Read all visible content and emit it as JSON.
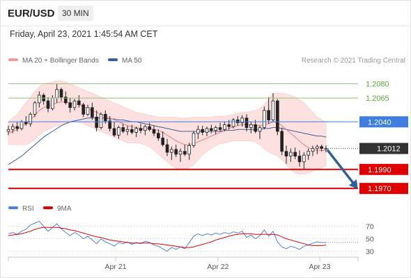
{
  "header": {
    "pair": "EUR/USD",
    "interval": "30 MIN",
    "datetime": "Friday, April 23, 2021 1:45:54 AM CET"
  },
  "credit": "Research © 2021 Trading Central",
  "legend": {
    "ma20": "MA 20 + Bollinger Bands",
    "ma50": "MA 50",
    "rsi": "RSI",
    "ma9": "9MA"
  },
  "colors": {
    "candle_up": "#ffffff",
    "candle_down": "#222222",
    "bollinger_fill": "#fde0e0",
    "ma20": "#ef7b7b",
    "ma50": "#3b5e9e",
    "resistance": "#8fc77a",
    "pivot": "#3f7de0",
    "support": "#e00000",
    "last_price": "#333333",
    "arrow": "#2d5f99",
    "rsi": "#4f7fe0",
    "rsi_ma": "#e00000"
  },
  "chart_data": [
    {
      "type": "candlestick",
      "title": "EUR/USD",
      "interval": "30 MIN",
      "x_ticks": [
        "Apr 21",
        "Apr 22",
        "Apr 23"
      ],
      "ylim": [
        1.1965,
        1.2095
      ],
      "grid": false,
      "levels": [
        {
          "label": "1.2080",
          "value": 1.208,
          "kind": "resistance"
        },
        {
          "label": "1.2065",
          "value": 1.2065,
          "kind": "resistance"
        },
        {
          "label": "1.2040",
          "value": 1.204,
          "kind": "pivot"
        },
        {
          "label": "1.2012",
          "value": 1.2012,
          "kind": "last"
        },
        {
          "label": "1.1990",
          "value": 1.199,
          "kind": "support"
        },
        {
          "label": "1.1970",
          "value": 1.197,
          "kind": "support"
        }
      ],
      "candles": [
        [
          1.203,
          1.2036,
          1.2026,
          1.2032
        ],
        [
          1.2032,
          1.2038,
          1.2028,
          1.2035
        ],
        [
          1.2035,
          1.204,
          1.203,
          1.2033
        ],
        [
          1.2033,
          1.2042,
          1.2031,
          1.204
        ],
        [
          1.204,
          1.2046,
          1.2036,
          1.2038
        ],
        [
          1.2038,
          1.205,
          1.2035,
          1.2048
        ],
        [
          1.2048,
          1.2062,
          1.2045,
          1.206
        ],
        [
          1.206,
          1.2072,
          1.2055,
          1.2068
        ],
        [
          1.2068,
          1.207,
          1.2058,
          1.2062
        ],
        [
          1.2062,
          1.2066,
          1.205,
          1.2054
        ],
        [
          1.2054,
          1.2068,
          1.2052,
          1.2065
        ],
        [
          1.2065,
          1.208,
          1.206,
          1.2074
        ],
        [
          1.2074,
          1.2076,
          1.2062,
          1.2066
        ],
        [
          1.2066,
          1.2072,
          1.2058,
          1.206
        ],
        [
          1.206,
          1.2065,
          1.205,
          1.2055
        ],
        [
          1.2055,
          1.2064,
          1.2052,
          1.2062
        ],
        [
          1.2062,
          1.2068,
          1.2055,
          1.2058
        ],
        [
          1.2058,
          1.206,
          1.2045,
          1.2048
        ],
        [
          1.2048,
          1.2058,
          1.2046,
          1.2055
        ],
        [
          1.2055,
          1.206,
          1.2042,
          1.2045
        ],
        [
          1.2045,
          1.2052,
          1.203,
          1.2034
        ],
        [
          1.2034,
          1.205,
          1.2032,
          1.2048
        ],
        [
          1.2048,
          1.2052,
          1.2038,
          1.2041
        ],
        [
          1.2041,
          1.2046,
          1.203,
          1.2033
        ],
        [
          1.2033,
          1.204,
          1.2024,
          1.2026
        ],
        [
          1.2026,
          1.2036,
          1.2022,
          1.2034
        ],
        [
          1.2034,
          1.2038,
          1.2028,
          1.203
        ],
        [
          1.203,
          1.2036,
          1.2026,
          1.2032
        ],
        [
          1.2032,
          1.2037,
          1.2027,
          1.2029
        ],
        [
          1.2029,
          1.2035,
          1.2024,
          1.2033
        ],
        [
          1.2033,
          1.2038,
          1.2028,
          1.2031
        ],
        [
          1.2031,
          1.2037,
          1.2026,
          1.2035
        ],
        [
          1.2035,
          1.2039,
          1.203,
          1.2032
        ],
        [
          1.2032,
          1.2036,
          1.2025,
          1.2028
        ],
        [
          1.2028,
          1.2032,
          1.202,
          1.2023
        ],
        [
          1.2023,
          1.203,
          1.2014,
          1.2016
        ],
        [
          1.2016,
          1.2022,
          1.2004,
          1.2008
        ],
        [
          1.2008,
          1.2014,
          1.2,
          1.2011
        ],
        [
          1.2011,
          1.2016,
          1.2003,
          1.2006
        ],
        [
          1.2006,
          1.2012,
          1.1998,
          1.2009
        ],
        [
          1.2009,
          1.2016,
          1.2004,
          1.2006
        ],
        [
          1.2006,
          1.2018,
          1.2,
          1.2015
        ],
        [
          1.2015,
          1.203,
          1.2013,
          1.2028
        ],
        [
          1.2028,
          1.2036,
          1.2022,
          1.2032
        ],
        [
          1.2032,
          1.2036,
          1.2026,
          1.2029
        ],
        [
          1.2029,
          1.2035,
          1.2025,
          1.2033
        ],
        [
          1.2033,
          1.2037,
          1.2028,
          1.2031
        ],
        [
          1.2031,
          1.2036,
          1.2027,
          1.2034
        ],
        [
          1.2034,
          1.2039,
          1.203,
          1.2032
        ],
        [
          1.2032,
          1.204,
          1.203,
          1.2037
        ],
        [
          1.2037,
          1.2042,
          1.2032,
          1.2035
        ],
        [
          1.2035,
          1.2044,
          1.2033,
          1.2042
        ],
        [
          1.2042,
          1.2046,
          1.2036,
          1.2039
        ],
        [
          1.2039,
          1.2047,
          1.2035,
          1.2044
        ],
        [
          1.2044,
          1.2048,
          1.203,
          1.2034
        ],
        [
          1.2034,
          1.204,
          1.2028,
          1.2037
        ],
        [
          1.2037,
          1.2042,
          1.2028,
          1.203
        ],
        [
          1.203,
          1.2036,
          1.2022,
          1.2034
        ],
        [
          1.2034,
          1.2056,
          1.2032,
          1.2052
        ],
        [
          1.2052,
          1.2066,
          1.2038,
          1.2042
        ],
        [
          1.2042,
          1.207,
          1.204,
          1.2062
        ],
        [
          1.2062,
          1.2064,
          1.2026,
          1.203
        ],
        [
          1.203,
          1.2034,
          1.2005,
          1.2009
        ],
        [
          1.2009,
          1.2015,
          1.1996,
          1.2004
        ],
        [
          1.2004,
          1.2012,
          1.1998,
          1.2008
        ],
        [
          1.2008,
          1.2013,
          1.2001,
          1.2004
        ],
        [
          1.2004,
          1.201,
          1.1993,
          1.1998
        ],
        [
          1.1998,
          1.2008,
          1.199,
          1.2005
        ],
        [
          1.2005,
          1.2012,
          1.2,
          1.2009
        ],
        [
          1.2009,
          1.2015,
          1.2004,
          1.2012
        ],
        [
          1.2012,
          1.2016,
          1.2006,
          1.2014
        ],
        [
          1.2014,
          1.2016,
          1.2009,
          1.2012
        ],
        [
          1.2012,
          1.2015,
          1.2008,
          1.2012
        ]
      ],
      "ma20": [
        1.2028,
        1.203,
        1.2032,
        1.2035,
        1.2038,
        1.2042,
        1.2047,
        1.2052,
        1.2055,
        1.2057,
        1.2058,
        1.206,
        1.2061,
        1.2061,
        1.206,
        1.2059,
        1.2058,
        1.2056,
        1.2054,
        1.2052,
        1.205,
        1.2048,
        1.2046,
        1.2044,
        1.2042,
        1.204,
        1.2038,
        1.2036,
        1.2035,
        1.2034,
        1.2033,
        1.2033,
        1.2033,
        1.2032,
        1.2031,
        1.2029,
        1.2026,
        1.2023,
        1.202,
        1.2018,
        1.2016,
        1.2016,
        1.2017,
        1.2019,
        1.2021,
        1.2023,
        1.2025,
        1.2027,
        1.2029,
        1.2031,
        1.2033,
        1.2035,
        1.2036,
        1.2037,
        1.2037,
        1.2037,
        1.2036,
        1.2036,
        1.2037,
        1.2038,
        1.204,
        1.2039,
        1.2036,
        1.2032,
        1.2028,
        1.2024,
        1.202,
        1.2016,
        1.2013,
        1.2011,
        1.201,
        1.201,
        1.201
      ],
      "ma50": [
        1.1995,
        1.1998,
        1.2001,
        1.2004,
        1.2008,
        1.2012,
        1.2016,
        1.202,
        1.2024,
        1.2027,
        1.203,
        1.2033,
        1.2036,
        1.2038,
        1.204,
        1.2041,
        1.2042,
        1.2043,
        1.2044,
        1.2044,
        1.2044,
        1.2044,
        1.2044,
        1.2043,
        1.2043,
        1.2042,
        1.2042,
        1.2041,
        1.204,
        1.204,
        1.2039,
        1.2038,
        1.2037,
        1.2036,
        1.2035,
        1.2034,
        1.2033,
        1.2032,
        1.2031,
        1.203,
        1.203,
        1.203,
        1.203,
        1.203,
        1.203,
        1.203,
        1.203,
        1.203,
        1.203,
        1.2031,
        1.2031,
        1.2031,
        1.2032,
        1.2032,
        1.2032,
        1.2032,
        1.2032,
        1.2032,
        1.2033,
        1.2033,
        1.2034,
        1.2034,
        1.2033,
        1.2032,
        1.2031,
        1.203,
        1.2029,
        1.2028,
        1.2027,
        1.2026,
        1.2025,
        1.2025,
        1.2024
      ],
      "bb_upper": [
        1.204,
        1.2044,
        1.2048,
        1.2054,
        1.206,
        1.2066,
        1.2072,
        1.2077,
        1.208,
        1.2081,
        1.2082,
        1.2083,
        1.2083,
        1.2082,
        1.208,
        1.2078,
        1.2076,
        1.2074,
        1.2072,
        1.207,
        1.2068,
        1.2066,
        1.2064,
        1.2062,
        1.206,
        1.2058,
        1.2056,
        1.2054,
        1.2052,
        1.205,
        1.2049,
        1.2048,
        1.2047,
        1.2046,
        1.2045,
        1.2045,
        1.2045,
        1.2045,
        1.2045,
        1.2044,
        1.2044,
        1.2044,
        1.2045,
        1.2045,
        1.2045,
        1.2045,
        1.2045,
        1.2046,
        1.2046,
        1.2046,
        1.2047,
        1.2048,
        1.2049,
        1.205,
        1.205,
        1.2051,
        1.2052,
        1.2054,
        1.2058,
        1.2064,
        1.207,
        1.207,
        1.207,
        1.2069,
        1.2068,
        1.2066,
        1.2063,
        1.206,
        1.2055,
        1.205,
        1.2045,
        1.2042,
        1.204
      ],
      "bb_lower": [
        1.2016,
        1.2016,
        1.2016,
        1.2016,
        1.2016,
        1.2018,
        1.2022,
        1.2026,
        1.203,
        1.2032,
        1.2034,
        1.2036,
        1.2037,
        1.2038,
        1.2039,
        1.204,
        1.204,
        1.2038,
        1.2036,
        1.2034,
        1.2032,
        1.203,
        1.2028,
        1.2026,
        1.2024,
        1.2022,
        1.202,
        1.2018,
        1.2018,
        1.2018,
        1.2017,
        1.2016,
        1.2014,
        1.201,
        1.2006,
        1.2002,
        1.1998,
        1.1994,
        1.1991,
        1.199,
        1.199,
        1.1992,
        1.1995,
        1.2,
        1.2005,
        1.2009,
        1.2012,
        1.2015,
        1.2017,
        1.2018,
        1.2019,
        1.202,
        1.202,
        1.202,
        1.202,
        1.202,
        1.2019,
        1.2016,
        1.2012,
        1.2008,
        1.2006,
        1.2004,
        1.2,
        1.1995,
        1.199,
        1.1986,
        1.1985,
        1.1985,
        1.1986,
        1.1988,
        1.199,
        1.1992,
        1.1993
      ],
      "projection": {
        "from": 1.2012,
        "to": 1.197
      }
    },
    {
      "type": "line",
      "title": "RSI",
      "y_ticks": [
        "70",
        "50",
        "30"
      ],
      "ylim": [
        25,
        85
      ],
      "series": [
        {
          "name": "RSI",
          "values": [
            58,
            60,
            57,
            62,
            65,
            72,
            75,
            78,
            70,
            62,
            68,
            74,
            66,
            60,
            55,
            60,
            56,
            50,
            54,
            48,
            42,
            50,
            45,
            42,
            38,
            44,
            42,
            45,
            41,
            44,
            42,
            46,
            44,
            40,
            38,
            34,
            30,
            36,
            33,
            37,
            34,
            44,
            54,
            58,
            55,
            58,
            56,
            59,
            57,
            60,
            58,
            61,
            59,
            62,
            52,
            56,
            50,
            55,
            64,
            54,
            62,
            45,
            37,
            34,
            38,
            36,
            33,
            38,
            40,
            43,
            45,
            44,
            44
          ]
        },
        {
          "name": "9MA",
          "values": [
            55,
            56,
            57,
            58,
            60,
            62,
            65,
            67,
            68,
            68,
            68,
            68,
            67,
            66,
            64,
            63,
            61,
            59,
            57,
            55,
            53,
            52,
            50,
            48,
            47,
            46,
            45,
            44,
            43,
            43,
            43,
            43,
            43,
            42,
            42,
            41,
            40,
            39,
            38,
            37,
            36,
            36,
            37,
            39,
            41,
            43,
            45,
            48,
            50,
            52,
            54,
            56,
            57,
            58,
            58,
            58,
            57,
            57,
            57,
            57,
            57,
            56,
            53,
            50,
            48,
            46,
            44,
            42,
            40,
            39,
            39,
            39,
            40
          ]
        }
      ]
    }
  ]
}
